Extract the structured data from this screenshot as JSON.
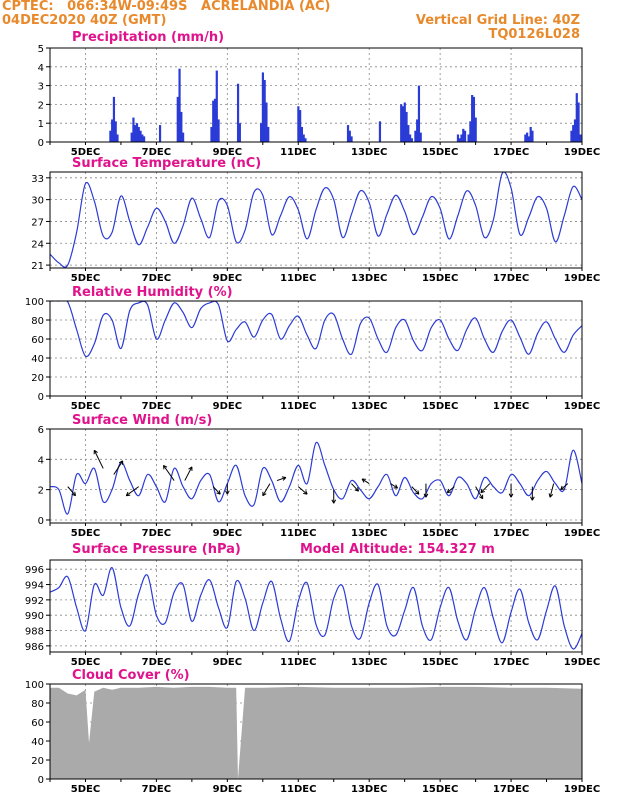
{
  "header": {
    "line1_left": "CPTEC:   066:34W-09:49S   ACRELANDIA (AC)",
    "line2_left": "04DEC2020 40Z (GMT)",
    "line1_right": "Vertical Grid Line: 40Z",
    "line2_right": "TQ0126L028"
  },
  "colors": {
    "series": "#2b3bd6",
    "cloud": "#aaaaaa",
    "title": "#e0138c",
    "header": "#e8892b",
    "grid": "#888888",
    "wind_arrow": "#000000"
  },
  "chart_data": [
    {
      "id": "precip",
      "type": "bar",
      "title": "Precipitation (mm/h)",
      "ylim": [
        0,
        5
      ],
      "yticks": [
        0,
        1,
        2,
        3,
        4,
        5
      ],
      "x_unit": "days since 04DEC2020 40Z",
      "xticks": [
        "5DEC",
        "7DEC",
        "9DEC",
        "11DEC",
        "13DEC",
        "15DEC",
        "17DEC",
        "19DEC"
      ],
      "x": [
        1.7,
        1.75,
        1.8,
        1.85,
        1.9,
        2.3,
        2.35,
        2.4,
        2.45,
        2.5,
        2.55,
        2.6,
        2.65,
        3.1,
        3.6,
        3.65,
        3.7,
        3.75,
        4.55,
        4.6,
        4.65,
        4.7,
        4.75,
        5.3,
        5.35,
        5.95,
        6.0,
        6.05,
        6.1,
        6.15,
        7.0,
        7.05,
        7.1,
        7.15,
        7.2,
        8.4,
        8.45,
        8.5,
        9.3,
        9.9,
        9.95,
        10.0,
        10.05,
        10.1,
        10.15,
        10.2,
        10.3,
        10.35,
        10.4,
        10.45,
        11.5,
        11.55,
        11.6,
        11.65,
        11.7,
        11.8,
        11.85,
        11.9,
        11.95,
        12.0,
        13.4,
        13.45,
        13.5,
        13.55,
        13.6,
        14.7,
        14.75,
        14.8,
        14.85,
        14.9,
        14.95
      ],
      "values": [
        0.6,
        1.2,
        2.4,
        1.1,
        0.4,
        0.5,
        1.3,
        0.9,
        1.0,
        0.8,
        0.6,
        0.4,
        0.3,
        0.9,
        2.4,
        3.9,
        1.6,
        0.5,
        0.8,
        2.2,
        2.3,
        3.8,
        1.2,
        3.1,
        1.0,
        1.0,
        3.7,
        3.3,
        2.1,
        0.8,
        1.9,
        1.7,
        0.8,
        0.4,
        0.2,
        0.9,
        0.6,
        0.3,
        1.1,
        2.0,
        1.9,
        2.1,
        1.6,
        0.9,
        0.4,
        0.2,
        0.6,
        1.2,
        3.0,
        0.5,
        0.4,
        0.2,
        0.4,
        0.7,
        0.6,
        0.4,
        1.1,
        2.5,
        2.4,
        1.3,
        0.4,
        0.5,
        0.3,
        0.8,
        0.6,
        0.6,
        0.9,
        1.2,
        2.6,
        2.1,
        0.4
      ]
    },
    {
      "id": "temp",
      "type": "line",
      "title": "Surface Temperature (nC)",
      "ylim": [
        20.6,
        33.8
      ],
      "yticks": [
        21,
        24,
        27,
        30,
        33
      ],
      "xticks": [
        "5DEC",
        "7DEC",
        "9DEC",
        "11DEC",
        "13DEC",
        "15DEC",
        "17DEC",
        "19DEC"
      ],
      "x": [
        0,
        0.25,
        0.5,
        0.75,
        1.0,
        1.25,
        1.5,
        1.75,
        2.0,
        2.25,
        2.5,
        2.75,
        3.0,
        3.25,
        3.5,
        3.75,
        4.0,
        4.25,
        4.5,
        4.75,
        5.0,
        5.25,
        5.5,
        5.75,
        6.0,
        6.25,
        6.5,
        6.75,
        7.0,
        7.25,
        7.5,
        7.75,
        8.0,
        8.25,
        8.5,
        8.75,
        9.0,
        9.25,
        9.5,
        9.75,
        10.0,
        10.25,
        10.5,
        10.75,
        11.0,
        11.25,
        11.5,
        11.75,
        12.0,
        12.25,
        12.5,
        12.75,
        13.0,
        13.25,
        13.5,
        13.75,
        14.0,
        14.25,
        14.5,
        14.75,
        15.0
      ],
      "values": [
        22.5,
        21.3,
        21.0,
        25.5,
        32.2,
        29.8,
        25.0,
        25.5,
        30.5,
        27.0,
        23.8,
        26.2,
        28.8,
        27.0,
        24.0,
        26.4,
        30.2,
        27.4,
        24.8,
        29.8,
        29.2,
        24.2,
        25.8,
        31.0,
        30.6,
        25.2,
        27.8,
        30.4,
        28.6,
        24.6,
        28.6,
        31.6,
        30.0,
        24.8,
        28.0,
        31.2,
        29.6,
        25.0,
        28.0,
        30.6,
        28.4,
        25.2,
        27.6,
        30.4,
        28.8,
        24.6,
        27.8,
        31.2,
        29.2,
        24.8,
        27.2,
        33.6,
        31.6,
        25.2,
        27.6,
        30.4,
        28.8,
        24.2,
        27.8,
        31.8,
        30.0
      ]
    },
    {
      "id": "rh",
      "type": "line",
      "title": "Relative Humidity (%)",
      "ylim": [
        0,
        100
      ],
      "yticks": [
        0,
        20,
        40,
        60,
        80,
        100
      ],
      "xticks": [
        "5DEC",
        "7DEC",
        "9DEC",
        "11DEC",
        "13DEC",
        "15DEC",
        "17DEC",
        "19DEC"
      ],
      "x": [
        0,
        0.25,
        0.5,
        0.75,
        1.0,
        1.25,
        1.5,
        1.75,
        2.0,
        2.25,
        2.5,
        2.75,
        3.0,
        3.25,
        3.5,
        3.75,
        4.0,
        4.25,
        4.5,
        4.75,
        5.0,
        5.25,
        5.5,
        5.75,
        6.0,
        6.25,
        6.5,
        6.75,
        7.0,
        7.25,
        7.5,
        7.75,
        8.0,
        8.25,
        8.5,
        8.75,
        9.0,
        9.25,
        9.5,
        9.75,
        10.0,
        10.25,
        10.5,
        10.75,
        11.0,
        11.25,
        11.5,
        11.75,
        12.0,
        12.25,
        12.5,
        12.75,
        13.0,
        13.25,
        13.5,
        13.75,
        14.0,
        14.25,
        14.5,
        14.75,
        15.0
      ],
      "values": [
        100,
        100,
        99,
        70,
        42,
        55,
        85,
        80,
        50,
        90,
        98,
        96,
        60,
        80,
        98,
        88,
        72,
        92,
        98,
        96,
        58,
        70,
        78,
        62,
        80,
        86,
        60,
        74,
        84,
        64,
        50,
        80,
        86,
        60,
        44,
        76,
        82,
        60,
        46,
        72,
        80,
        58,
        48,
        72,
        80,
        60,
        48,
        70,
        82,
        60,
        46,
        68,
        80,
        62,
        44,
        66,
        78,
        60,
        46,
        64,
        74
      ]
    },
    {
      "id": "wind",
      "type": "line",
      "title": "Surface Wind (m/s)",
      "ylim": [
        -0.2,
        6.0
      ],
      "yticks": [
        0,
        2,
        4,
        6
      ],
      "xticks": [
        "5DEC",
        "7DEC",
        "9DEC",
        "11DEC",
        "13DEC",
        "15DEC",
        "17DEC",
        "19DEC"
      ],
      "x": [
        0,
        0.25,
        0.5,
        0.75,
        1.0,
        1.25,
        1.5,
        1.75,
        2.0,
        2.25,
        2.5,
        2.75,
        3.0,
        3.25,
        3.5,
        3.75,
        4.0,
        4.25,
        4.5,
        4.75,
        5.0,
        5.25,
        5.5,
        5.75,
        6.0,
        6.25,
        6.5,
        6.75,
        7.0,
        7.25,
        7.5,
        7.75,
        8.0,
        8.25,
        8.5,
        8.75,
        9.0,
        9.25,
        9.5,
        9.75,
        10.0,
        10.25,
        10.5,
        10.75,
        11.0,
        11.25,
        11.5,
        11.75,
        12.0,
        12.25,
        12.5,
        12.75,
        13.0,
        13.25,
        13.5,
        13.75,
        14.0,
        14.25,
        14.5,
        14.75,
        15.0
      ],
      "values": [
        2.2,
        2.0,
        0.4,
        3.0,
        2.4,
        3.4,
        1.2,
        2.0,
        3.8,
        2.6,
        1.6,
        3.0,
        2.2,
        1.2,
        3.4,
        2.2,
        1.4,
        2.6,
        3.0,
        1.2,
        2.4,
        3.6,
        1.6,
        1.0,
        3.4,
        2.6,
        1.2,
        2.2,
        3.6,
        2.4,
        5.1,
        3.6,
        2.0,
        1.4,
        2.6,
        2.0,
        1.4,
        2.2,
        3.0,
        1.6,
        2.8,
        1.8,
        1.4,
        2.4,
        2.6,
        1.6,
        2.8,
        2.4,
        1.4,
        2.8,
        2.2,
        1.8,
        3.0,
        2.4,
        1.6,
        2.6,
        3.2,
        2.4,
        2.0,
        4.6,
        2.4
      ],
      "arrows": [
        {
          "x": 0.5,
          "y": 2.2,
          "dx": 0.22,
          "dy": -0.6
        },
        {
          "x": 1.5,
          "y": 3.4,
          "dx": -0.25,
          "dy": 1.2
        },
        {
          "x": 1.8,
          "y": 3.0,
          "dx": 0.25,
          "dy": 0.9
        },
        {
          "x": 2.5,
          "y": 2.2,
          "dx": -0.35,
          "dy": -0.6
        },
        {
          "x": 3.5,
          "y": 2.6,
          "dx": -0.3,
          "dy": 1.0
        },
        {
          "x": 3.8,
          "y": 2.6,
          "dx": 0.2,
          "dy": 0.9
        },
        {
          "x": 4.6,
          "y": 2.2,
          "dx": 0.2,
          "dy": -0.5
        },
        {
          "x": 5.0,
          "y": 2.4,
          "dx": 0.0,
          "dy": -0.7
        },
        {
          "x": 6.2,
          "y": 2.4,
          "dx": -0.2,
          "dy": -0.8
        },
        {
          "x": 6.4,
          "y": 2.6,
          "dx": 0.25,
          "dy": 0.2
        },
        {
          "x": 7.0,
          "y": 2.2,
          "dx": 0.25,
          "dy": -0.5
        },
        {
          "x": 8.0,
          "y": 2.0,
          "dx": 0.0,
          "dy": -0.9
        },
        {
          "x": 8.5,
          "y": 2.4,
          "dx": 0.2,
          "dy": -0.5
        },
        {
          "x": 9.0,
          "y": 2.4,
          "dx": -0.2,
          "dy": 0.3
        },
        {
          "x": 9.6,
          "y": 2.4,
          "dx": 0.2,
          "dy": -0.3
        },
        {
          "x": 10.2,
          "y": 2.2,
          "dx": 0.2,
          "dy": -0.5
        },
        {
          "x": 10.6,
          "y": 2.4,
          "dx": 0.0,
          "dy": -0.9
        },
        {
          "x": 11.4,
          "y": 2.2,
          "dx": -0.2,
          "dy": -0.4
        },
        {
          "x": 12.0,
          "y": 2.2,
          "dx": 0.2,
          "dy": -0.8
        },
        {
          "x": 12.4,
          "y": 2.4,
          "dx": -0.25,
          "dy": -0.6
        },
        {
          "x": 13.0,
          "y": 2.4,
          "dx": 0.0,
          "dy": -0.9
        },
        {
          "x": 13.6,
          "y": 2.2,
          "dx": 0.0,
          "dy": -0.9
        },
        {
          "x": 14.2,
          "y": 2.4,
          "dx": -0.1,
          "dy": -0.9
        },
        {
          "x": 14.6,
          "y": 2.4,
          "dx": -0.2,
          "dy": -0.4
        }
      ]
    },
    {
      "id": "pres",
      "type": "line",
      "title": "Surface Pressure (hPa)",
      "annotation": "Model Altitude: 154.327 m",
      "ylim": [
        985.2,
        997.2
      ],
      "yticks": [
        986,
        988,
        990,
        992,
        994,
        996
      ],
      "xticks": [
        "5DEC",
        "7DEC",
        "9DEC",
        "11DEC",
        "13DEC",
        "15DEC",
        "17DEC",
        "19DEC"
      ],
      "x": [
        0,
        0.25,
        0.5,
        0.75,
        1.0,
        1.25,
        1.5,
        1.75,
        2.0,
        2.25,
        2.5,
        2.75,
        3.0,
        3.25,
        3.5,
        3.75,
        4.0,
        4.25,
        4.5,
        4.75,
        5.0,
        5.25,
        5.5,
        5.75,
        6.0,
        6.25,
        6.5,
        6.75,
        7.0,
        7.25,
        7.5,
        7.75,
        8.0,
        8.25,
        8.5,
        8.75,
        9.0,
        9.25,
        9.5,
        9.75,
        10.0,
        10.25,
        10.5,
        10.75,
        11.0,
        11.25,
        11.5,
        11.75,
        12.0,
        12.25,
        12.5,
        12.75,
        13.0,
        13.25,
        13.5,
        13.75,
        14.0,
        14.25,
        14.5,
        14.75,
        15.0
      ],
      "values": [
        993.0,
        993.6,
        995.0,
        991.0,
        988.0,
        994.0,
        992.6,
        996.2,
        991.0,
        988.6,
        992.8,
        995.2,
        990.0,
        989.0,
        993.0,
        994.0,
        989.2,
        992.6,
        994.6,
        991.0,
        988.4,
        994.4,
        992.2,
        988.0,
        991.6,
        994.4,
        989.6,
        986.6,
        991.8,
        994.2,
        988.8,
        987.4,
        992.2,
        993.8,
        988.6,
        987.0,
        991.6,
        994.0,
        988.6,
        987.4,
        990.6,
        993.6,
        988.6,
        986.8,
        991.0,
        993.6,
        989.2,
        986.8,
        990.8,
        993.6,
        989.6,
        986.4,
        990.4,
        993.4,
        989.0,
        986.8,
        990.6,
        993.8,
        988.6,
        985.6,
        987.6
      ]
    },
    {
      "id": "cloud",
      "type": "area",
      "title": "Cloud Cover (%)",
      "ylim": [
        0,
        100
      ],
      "yticks": [
        0,
        20,
        40,
        60,
        80,
        100
      ],
      "xticks": [
        "5DEC",
        "7DEC",
        "9DEC",
        "11DEC",
        "13DEC",
        "15DEC",
        "17DEC",
        "19DEC"
      ],
      "x": [
        0,
        0.25,
        0.5,
        0.75,
        1.0,
        1.1,
        1.25,
        1.5,
        1.75,
        2.0,
        2.5,
        3.0,
        3.5,
        4.0,
        4.5,
        5.0,
        5.25,
        5.3,
        5.5,
        6.0,
        7.0,
        8.0,
        9.0,
        10.0,
        11.0,
        12.0,
        13.0,
        14.0,
        15.0
      ],
      "values": [
        96,
        96,
        90,
        88,
        94,
        38,
        92,
        96,
        94,
        96,
        96,
        97,
        96,
        97,
        97,
        96,
        96,
        0,
        96,
        96,
        97,
        96,
        96,
        96,
        97,
        97,
        96,
        96,
        95
      ]
    }
  ]
}
